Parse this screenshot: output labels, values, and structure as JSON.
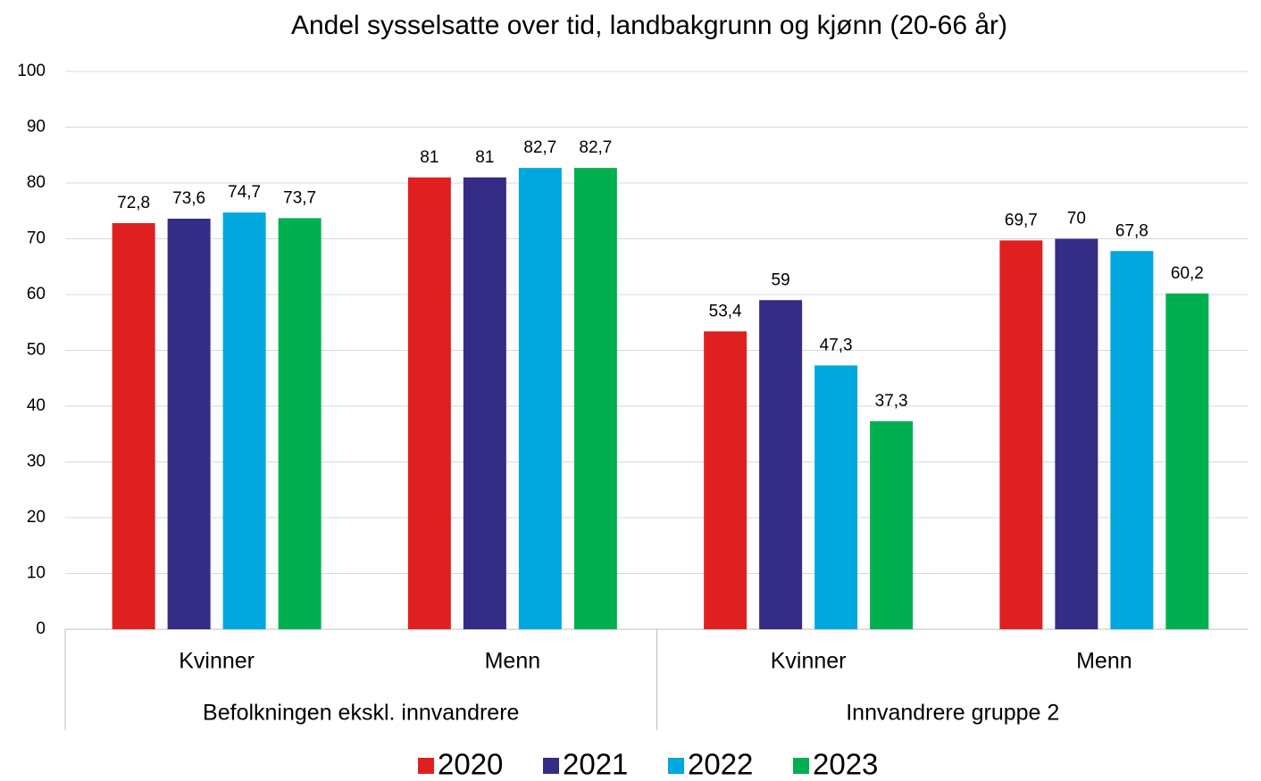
{
  "chart_data": {
    "type": "bar",
    "title": "Andel sysselsatte over tid, landbakgrunn og kjønn (20-66 år)",
    "categories": [
      "Kvinner",
      "Menn",
      "Kvinner",
      "Menn"
    ],
    "groups": [
      "Befolkningen ekskl. innvandrere",
      "Innvandrere gruppe 2"
    ],
    "series": [
      {
        "name": "2020",
        "color": "#e02020",
        "values": [
          72.8,
          81,
          53.4,
          69.7
        ],
        "value_labels": [
          "72,8",
          "81",
          "53,4",
          "69,7"
        ]
      },
      {
        "name": "2021",
        "color": "#352c86",
        "values": [
          73.6,
          81,
          59,
          70
        ],
        "value_labels": [
          "73,6",
          "81",
          "59",
          "70"
        ]
      },
      {
        "name": "2022",
        "color": "#00a8de",
        "values": [
          74.7,
          82.7,
          47.3,
          67.8
        ],
        "value_labels": [
          "74,7",
          "82,7",
          "47,3",
          "67,8"
        ]
      },
      {
        "name": "2023",
        "color": "#00b050",
        "values": [
          73.7,
          82.7,
          37.3,
          60.2
        ],
        "value_labels": [
          "73,7",
          "82,7",
          "37,3",
          "60,2"
        ]
      }
    ],
    "ylim": [
      0,
      100
    ],
    "yticks": [
      0,
      10,
      20,
      30,
      40,
      50,
      60,
      70,
      80,
      90,
      100
    ],
    "grid": true,
    "legend": "bottom"
  }
}
